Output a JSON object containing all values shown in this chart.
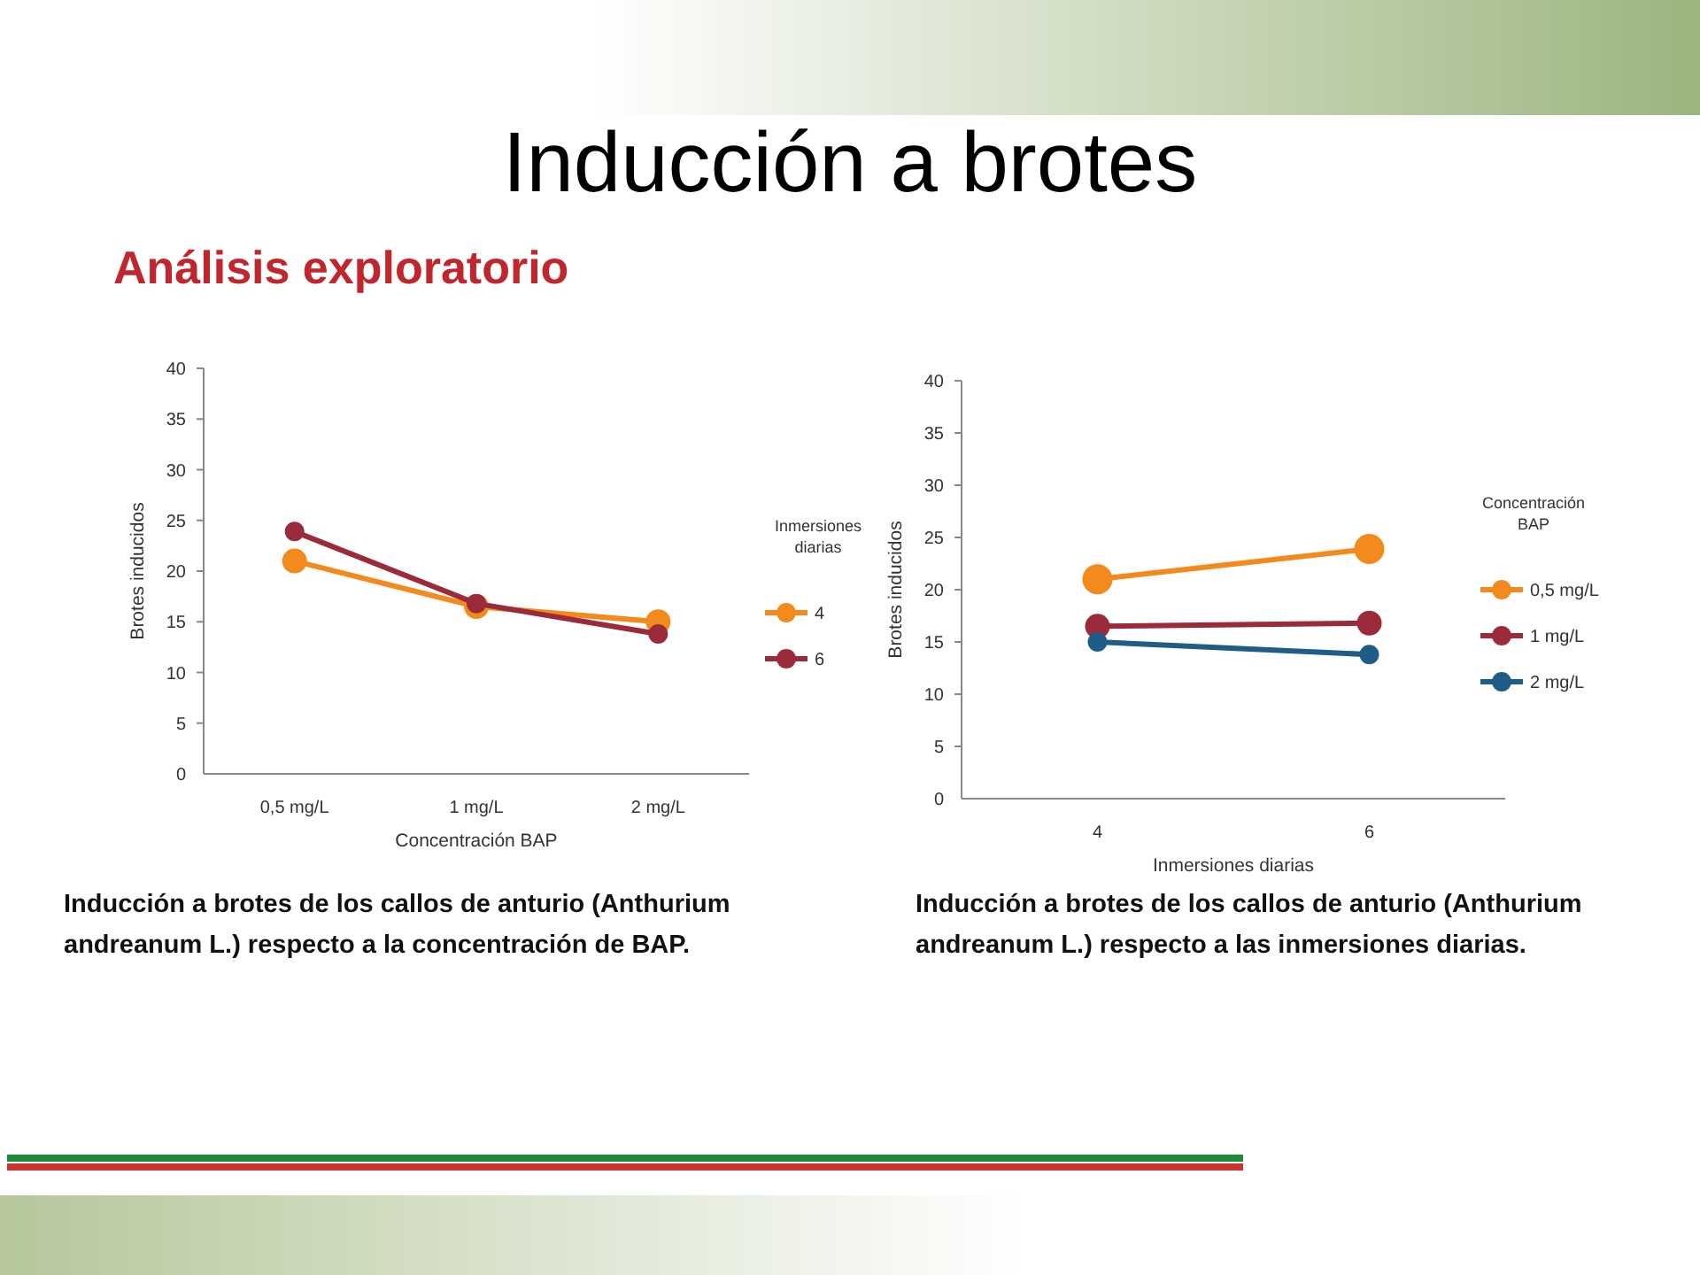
{
  "chart_data": [
    {
      "type": "line",
      "title": "Inducción a brotes",
      "subtitle": "Análisis exploratorio",
      "categories": [
        "0,5 mg/L",
        "1 mg/L",
        "2 mg/L"
      ],
      "xlabel": "Concentración BAP",
      "ylabel": "Brotes inducidos",
      "legend_title": "Inmersiones diarias",
      "ylim": [
        0,
        40
      ],
      "yticks": [
        0,
        5,
        10,
        15,
        20,
        25,
        30,
        35,
        40
      ],
      "marker": "circle",
      "legend": "right",
      "grid": false,
      "series": [
        {
          "name": "4",
          "color": "#f28a1e",
          "values": [
            21,
            16.5,
            15
          ]
        },
        {
          "name": "6",
          "color": "#9b2a3a",
          "values": [
            23.9,
            16.8,
            13.8
          ]
        }
      ],
      "annotations": [
        "Inducción a brotes de los callos de anturio (Anthurium andreanum L.) respecto a la concentración de BAP."
      ]
    },
    {
      "type": "line",
      "x": [
        4,
        6
      ],
      "xlim": [
        3,
        7
      ],
      "xticks": [
        4,
        6
      ],
      "xlabel": "Inmersiones diarias",
      "ylabel": "Brotes inducidos",
      "legend_title": "Concentración BAP",
      "ylim": [
        0,
        40
      ],
      "yticks": [
        0,
        5,
        10,
        15,
        20,
        25,
        30,
        35,
        40
      ],
      "marker": "circle",
      "legend": "right",
      "grid": false,
      "series": [
        {
          "name": "0,5 mg/L",
          "color": "#f28a1e",
          "values": [
            21,
            23.9
          ]
        },
        {
          "name": "1 mg/L",
          "color": "#9b2a3a",
          "values": [
            16.5,
            16.8
          ]
        },
        {
          "name": "2 mg/L",
          "color": "#1f5c86",
          "values": [
            15,
            13.8
          ]
        }
      ],
      "annotations": [
        "Inducción a brotes de los callos de anturio (Anthurium andreanum L.) respecto a las inmersiones diarias."
      ]
    }
  ]
}
